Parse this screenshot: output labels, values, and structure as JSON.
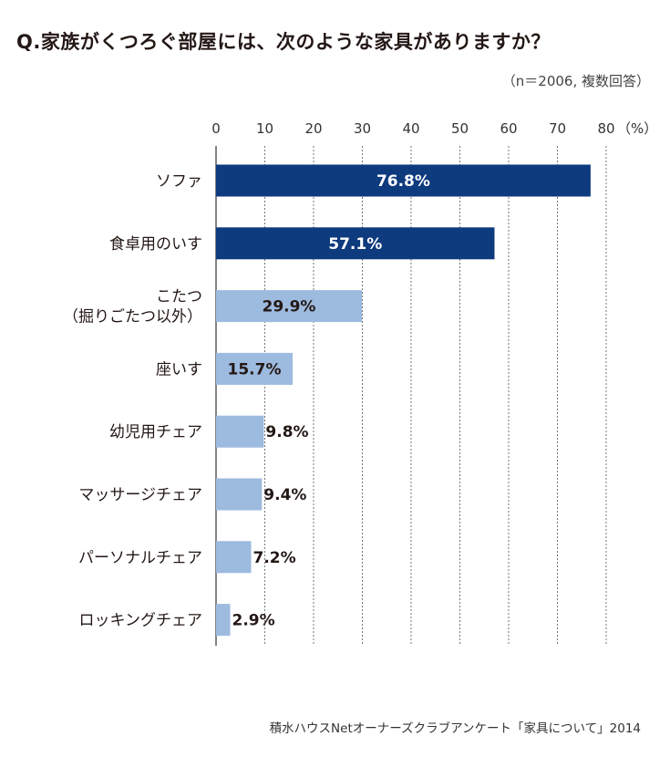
{
  "title": "Q.家族がくつろぐ部屋には、次のような家具がありますか？",
  "note": "（n＝2006, 複数回答）",
  "source": "積水ハウスNetオーナーズクラブアンケート「家具について」2014",
  "colors": {
    "dark_bar": "#0e3a7e",
    "light_bar": "#9dbadf",
    "grid": "#555555",
    "axis": "#333333"
  },
  "chart_data": {
    "type": "bar",
    "orientation": "horizontal",
    "title": "Q.家族がくつろぐ部屋には、次のような家具がありますか？",
    "unit_label": "（%）",
    "xlim": [
      0,
      80
    ],
    "xticks": [
      0,
      10,
      20,
      30,
      40,
      50,
      60,
      70,
      80
    ],
    "grid": "dashed vertical",
    "categories": [
      [
        "ソファ"
      ],
      [
        "食卓用のいす"
      ],
      [
        "こたつ",
        "（掘りごたつ以外）"
      ],
      [
        "座いす"
      ],
      [
        "幼児用チェア"
      ],
      [
        "マッサージチェア"
      ],
      [
        "パーソナルチェア"
      ],
      [
        "ロッキングチェア"
      ]
    ],
    "values": [
      76.8,
      57.1,
      29.9,
      15.7,
      9.8,
      9.4,
      7.2,
      2.9
    ],
    "value_labels": [
      "76.8%",
      "57.1%",
      "29.9%",
      "15.7%",
      "9.8%",
      "9.4%",
      "7.2%",
      "2.9%"
    ],
    "bar_style": [
      "dark",
      "dark",
      "light",
      "light",
      "light",
      "light",
      "light",
      "light"
    ]
  }
}
